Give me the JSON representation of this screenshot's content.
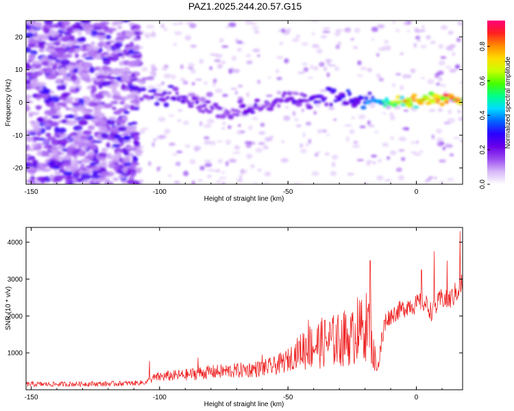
{
  "title": "PAZ1.2025.244.20.57.G15",
  "chart_data": [
    {
      "type": "heatmap",
      "title": "PAZ1.2025.244.20.57.G15",
      "xlabel": "Height of straight line (km)",
      "ylabel": "Frequency (Hz)",
      "colorbar_label": "Normalized spectral amplitude",
      "xlim": [
        -152,
        18
      ],
      "ylim": [
        -25,
        25
      ],
      "xticks": [
        -150,
        -100,
        -50,
        0
      ],
      "yticks": [
        -20,
        -10,
        0,
        10,
        20
      ],
      "colorbar_range": [
        0,
        0.95
      ],
      "colorbar_ticks": [
        0.0,
        0.2,
        0.4,
        0.6,
        0.8
      ],
      "colormap": [
        "#ffffff",
        "#d8b8f8",
        "#9a4cf0",
        "#6a00e8",
        "#2a00ff",
        "#0064ff",
        "#00dcff",
        "#00ff8c",
        "#46ff00",
        "#c8ff00",
        "#ffdc00",
        "#ff8c00",
        "#ff2020",
        "#ff0078"
      ],
      "ridge": {
        "x": [
          -105,
          -95,
          -85,
          -75,
          -65,
          -55,
          -45,
          -35,
          -25,
          -15,
          -5,
          5,
          15
        ],
        "frequency_hz": [
          2,
          2,
          0,
          -3,
          -2,
          0,
          1,
          2,
          1,
          0,
          0,
          1,
          1
        ],
        "amplitude": [
          0.25,
          0.25,
          0.22,
          0.2,
          0.22,
          0.22,
          0.25,
          0.28,
          0.3,
          0.45,
          0.7,
          0.8,
          0.85
        ]
      }
    },
    {
      "type": "line",
      "xlabel": "Height of straight line (km)",
      "ylabel": "SNR (10 * v/v)",
      "xlim": [
        -152,
        18
      ],
      "ylim": [
        0,
        4400
      ],
      "xticks": [
        -150,
        -100,
        -50,
        0
      ],
      "yticks": [
        1000,
        2000,
        3000,
        4000
      ],
      "line_color": "#ee2222",
      "x": [
        -150,
        -140,
        -130,
        -120,
        -110,
        -105,
        -103,
        -100,
        -95,
        -90,
        -85,
        -80,
        -75,
        -70,
        -65,
        -60,
        -55,
        -50,
        -45,
        -40,
        -35,
        -30,
        -25,
        -22,
        -20,
        -18,
        -17,
        -15,
        -13,
        -12,
        -10,
        -8,
        -5,
        -3,
        0,
        2,
        4,
        6,
        8,
        10,
        12,
        14,
        16,
        18
      ],
      "y": [
        150,
        150,
        160,
        160,
        180,
        200,
        300,
        350,
        380,
        400,
        450,
        480,
        500,
        520,
        550,
        580,
        650,
        800,
        1100,
        1200,
        1300,
        1350,
        1400,
        1600,
        1700,
        1800,
        1000,
        600,
        1500,
        1900,
        2000,
        2100,
        2200,
        2300,
        2300,
        2400,
        2300,
        2100,
        2300,
        2500,
        2400,
        2500,
        2700,
        2900
      ],
      "spikes": [
        {
          "x": -104,
          "y": 780
        },
        {
          "x": -85,
          "y": 870
        },
        {
          "x": -60,
          "y": 950
        },
        {
          "x": -42,
          "y": 1900
        },
        {
          "x": -28,
          "y": 2150
        },
        {
          "x": -23,
          "y": 2500
        },
        {
          "x": -18,
          "y": 3500
        },
        {
          "x": 2,
          "y": 3250
        },
        {
          "x": 7,
          "y": 3750
        },
        {
          "x": 12,
          "y": 3500
        },
        {
          "x": 17,
          "y": 4300
        }
      ]
    }
  ]
}
